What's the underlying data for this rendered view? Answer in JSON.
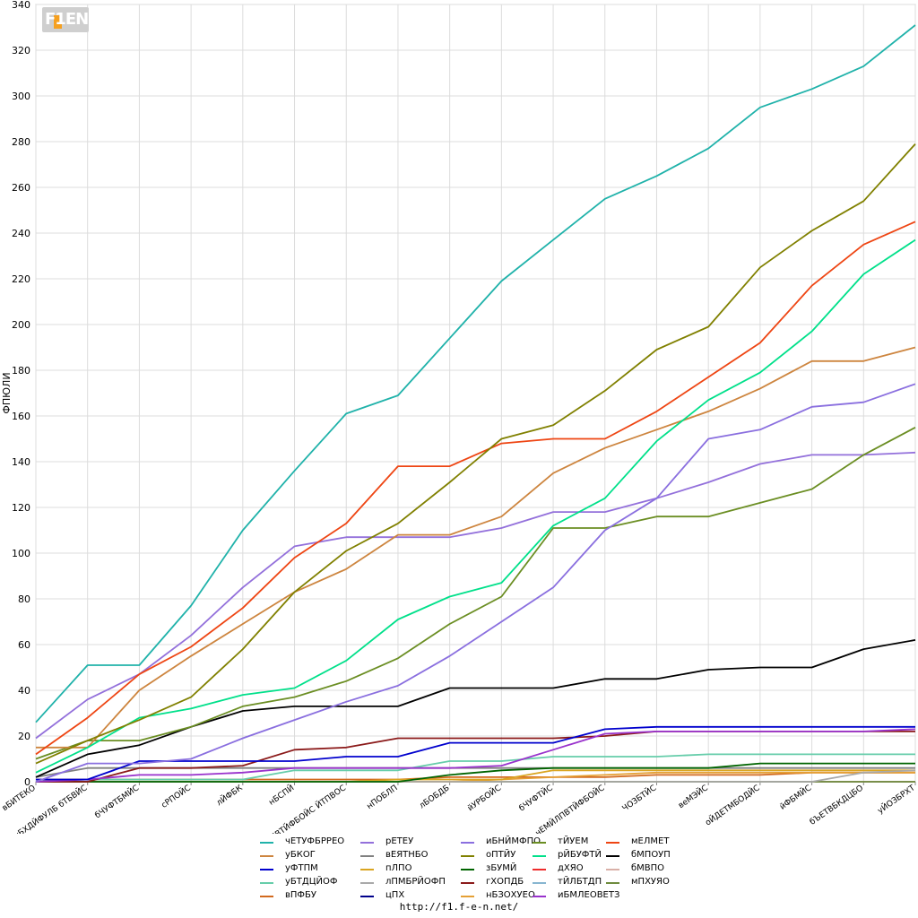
{
  "logo_text": "F1EN",
  "footer_url": "http://f1.f-e-n.net/",
  "chart_data": {
    "type": "line",
    "ylabel": "ФПЮЛИ",
    "xlabel": "",
    "ylim": [
      0,
      340
    ],
    "yticks": [
      0,
      20,
      40,
      60,
      80,
      100,
      120,
      140,
      160,
      180,
      200,
      220,
      240,
      260,
      280,
      300,
      320,
      340
    ],
    "grid": true,
    "legend_position": "bottom",
    "categories": [
      "вБИТЕКО",
      "уБХДЙФУЛБ бТБВЙС",
      "бЧУФТБМЙС",
      "сРПОЙС",
      "лЙФБК",
      "нБСПЙ",
      "чЕМЙЛПВТЙФБОЙС ЙТПВОС",
      "нПОБЛП",
      "лБОБДБ",
      "йУРБОЙС",
      "бЧУФТЙС",
      "чЕМЙЛПВТЙФБОЙС",
      "ЧОЗБТЙС",
      "веМЭЙС",
      "оЙДЕТМБОДЙС",
      "йФБМЙС",
      "бЪЕТВБКДЦБО",
      "уЙОЗБРХТ"
    ],
    "series": [
      {
        "name": "чЕТУФБРРЕО",
        "color": "#20b2aa",
        "values": [
          26,
          51,
          51,
          77,
          110,
          136,
          161,
          169,
          194,
          219,
          237,
          255,
          265,
          277,
          295,
          303,
          313,
          331
        ]
      },
      {
        "name": "уБКОГ",
        "color": "#cd853f",
        "values": [
          15,
          15,
          40,
          55,
          69,
          83,
          93,
          108,
          108,
          116,
          135,
          146,
          154,
          162,
          172,
          184,
          184,
          190
        ]
      },
      {
        "name": "уФТПМ",
        "color": "#0000cd",
        "values": [
          1,
          1,
          9,
          9,
          9,
          9,
          11,
          11,
          17,
          17,
          17,
          23,
          24,
          24,
          24,
          24,
          24,
          24
        ]
      },
      {
        "name": "уБТДЦЙОФ",
        "color": "#66cdaa",
        "values": [
          0,
          1,
          1,
          1,
          1,
          5,
          5,
          5,
          9,
          9,
          11,
          11,
          11,
          12,
          12,
          12,
          12,
          12
        ]
      },
      {
        "name": "вПФБУ",
        "color": "#d2691e",
        "values": [
          1,
          1,
          1,
          1,
          1,
          1,
          1,
          1,
          2,
          2,
          2,
          2,
          3,
          3,
          3,
          4,
          4,
          4
        ]
      },
      {
        "name": "рЕТЕУ",
        "color": "#9370db",
        "values": [
          19,
          36,
          47,
          64,
          85,
          103,
          107,
          107,
          107,
          111,
          118,
          118,
          124,
          131,
          139,
          143,
          143,
          144
        ]
      },
      {
        "name": "вЕЯТНБО",
        "color": "#808080",
        "values": [
          2,
          6,
          6,
          6,
          6,
          6,
          6,
          6,
          6,
          6,
          6,
          6,
          6,
          6,
          6,
          6,
          6,
          6
        ]
      },
      {
        "name": "пЛПО",
        "color": "#daa520",
        "values": [
          0,
          0,
          0,
          0,
          0,
          0,
          0,
          1,
          1,
          1,
          5,
          5,
          5,
          5,
          5,
          5,
          5,
          5
        ]
      },
      {
        "name": "лПМБРЙОФП",
        "color": "#a9a9a9",
        "values": [
          0,
          0,
          0,
          0,
          0,
          0,
          0,
          0,
          0,
          0,
          0,
          0,
          0,
          0,
          0,
          0,
          4,
          5
        ]
      },
      {
        "name": "цПХ",
        "color": "#00008b",
        "values": [
          0,
          0,
          0,
          0,
          0,
          0,
          0,
          0,
          0,
          0,
          0,
          0,
          0,
          0,
          0,
          0,
          0,
          0
        ]
      },
      {
        "name": "иБНЙМФПО",
        "color": "#8a6fdf",
        "values": [
          0,
          8,
          8,
          10,
          19,
          27,
          35,
          42,
          55,
          70,
          85,
          110,
          124,
          150,
          154,
          164,
          166,
          174
        ]
      },
      {
        "name": "оПТЙУ",
        "color": "#808000",
        "values": [
          8,
          18,
          27,
          37,
          58,
          83,
          101,
          113,
          131,
          150,
          156,
          171,
          189,
          199,
          225,
          241,
          254,
          279
        ]
      },
      {
        "name": "зБУМЙ",
        "color": "#006400",
        "values": [
          0,
          0,
          0,
          0,
          0,
          0,
          0,
          0,
          3,
          5,
          6,
          6,
          6,
          6,
          8,
          8,
          8,
          8
        ]
      },
      {
        "name": "гХОПДБ",
        "color": "#8b1a1a",
        "values": [
          0,
          0,
          6,
          6,
          7,
          14,
          15,
          19,
          19,
          19,
          19,
          20,
          22,
          22,
          22,
          22,
          22,
          22
        ]
      },
      {
        "name": "нБЗОХУЕО",
        "color": "#e5a035",
        "values": [
          0,
          0,
          0,
          0,
          0,
          0,
          0,
          0,
          0,
          1,
          2,
          3,
          4,
          4,
          4,
          4,
          4,
          4
        ]
      },
      {
        "name": "тЙУЕМ",
        "color": "#6b8e23",
        "values": [
          10,
          18,
          18,
          24,
          33,
          37,
          44,
          54,
          69,
          81,
          111,
          111,
          116,
          116,
          122,
          128,
          143,
          155
        ]
      },
      {
        "name": "рЙБУФТЙ",
        "color": "#00e08a",
        "values": [
          4,
          15,
          28,
          32,
          38,
          41,
          53,
          71,
          81,
          87,
          112,
          124,
          149,
          167,
          179,
          197,
          222,
          237
        ]
      },
      {
        "name": "дХЯО",
        "color": "#ee2c2c",
        "values": [
          0,
          0,
          0,
          0,
          0,
          0,
          0,
          0,
          0,
          0,
          0,
          0,
          0,
          0,
          0,
          0,
          0,
          0
        ]
      },
      {
        "name": "тЙЛБТДП",
        "color": "#87b6d0",
        "values": [
          0,
          0,
          0,
          0,
          0,
          0,
          0,
          0,
          0,
          0,
          0,
          0,
          0,
          0,
          0,
          0,
          0,
          0
        ]
      },
      {
        "name": "иБМЛЕОВЕТЗ",
        "color": "#9932cc",
        "values": [
          0,
          1,
          3,
          3,
          4,
          6,
          6,
          6,
          6,
          7,
          14,
          21,
          22,
          22,
          22,
          22,
          22,
          23
        ]
      },
      {
        "name": "мЕЛМЕТ",
        "color": "#ee4513",
        "values": [
          12,
          28,
          47,
          59,
          76,
          98,
          113,
          138,
          138,
          148,
          150,
          150,
          162,
          177,
          192,
          217,
          235,
          245
        ]
      },
      {
        "name": "бМПОУП",
        "color": "#000000",
        "values": [
          2,
          12,
          16,
          24,
          31,
          33,
          33,
          33,
          41,
          41,
          41,
          45,
          45,
          49,
          50,
          50,
          58,
          62
        ]
      },
      {
        "name": "бМВПО",
        "color": "#d9b0a8",
        "values": [
          0,
          0,
          0,
          0,
          0,
          0,
          0,
          0,
          0,
          0,
          0,
          0,
          0,
          0,
          0,
          0,
          0,
          0
        ]
      },
      {
        "name": "мПХУЯО",
        "color": "#6e8b3d",
        "values": [
          0,
          0,
          0,
          0,
          0,
          0,
          0,
          0,
          0,
          0,
          0,
          0,
          0,
          0,
          0,
          0,
          0,
          0
        ]
      }
    ]
  }
}
